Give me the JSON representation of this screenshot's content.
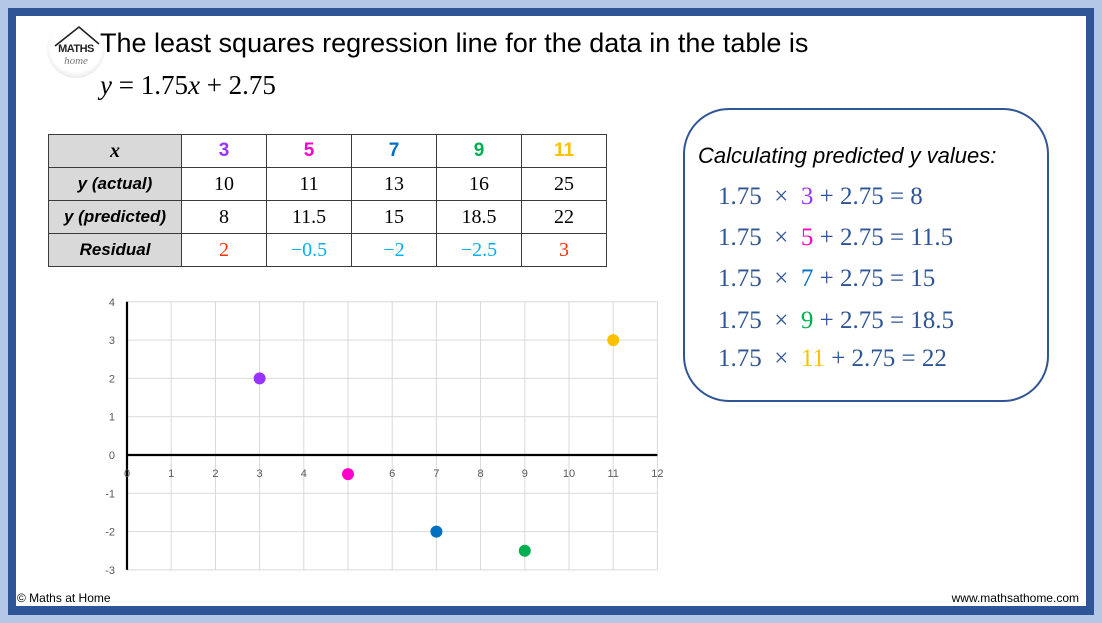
{
  "header": {
    "logo": {
      "top": "MATHS",
      "bottom": "home"
    },
    "title": "The least squares regression line for the data in the table is",
    "equation": {
      "y": "y",
      "eq": " = 1.75",
      "x": "x",
      "rest": " + 2.75"
    }
  },
  "table": {
    "row_labels": [
      "x",
      "y (actual)",
      "y (predicted)",
      "Residual"
    ],
    "x": [
      "3",
      "5",
      "7",
      "9",
      "11"
    ],
    "y_actual": [
      "10",
      "11",
      "13",
      "16",
      "25"
    ],
    "y_predicted": [
      "8",
      "11.5",
      "15",
      "18.5",
      "22"
    ],
    "residual": [
      "2",
      "−0.5",
      "−2",
      "−2.5",
      "3"
    ]
  },
  "colors": {
    "x_values": [
      "#9933ff",
      "#ff00cc",
      "#0070c0",
      "#00b050",
      "#ffc000"
    ],
    "residual_positive": "#ff3300",
    "residual_negative": "#00b0f0",
    "frame": "#2f5597",
    "outer": "#b4c7e7",
    "calc_text": "#2f5597"
  },
  "calc": {
    "title": "Calculating predicted y values:",
    "lines": [
      {
        "pre": "1.75  ×  ",
        "x": "3",
        "post": " + 2.75 = 8"
      },
      {
        "pre": "1.75  ×  ",
        "x": "5",
        "post": " + 2.75 = 11.5"
      },
      {
        "pre": "1.75  ×  ",
        "x": "7",
        "post": " + 2.75 = 15"
      },
      {
        "pre": "1.75  ×  ",
        "x": "9",
        "post": " + 2.75 = 18.5"
      },
      {
        "pre": "1.75  ×  ",
        "x": "11",
        "post": " + 2.75 = 22"
      }
    ]
  },
  "chart_data": {
    "type": "scatter",
    "title": "",
    "xlabel": "",
    "ylabel": "",
    "xlim": [
      0,
      12
    ],
    "ylim": [
      -3,
      4
    ],
    "x_ticks": [
      "0",
      "1",
      "2",
      "3",
      "4",
      "5",
      "6",
      "7",
      "8",
      "9",
      "10",
      "11",
      "12"
    ],
    "y_ticks": [
      "4",
      "3",
      "2",
      "1",
      "0",
      "-1",
      "-2",
      "-3"
    ],
    "grid": true,
    "series": [
      {
        "name": "Residuals",
        "x": [
          3,
          5,
          7,
          9,
          11
        ],
        "y": [
          2,
          -0.5,
          -2,
          -2.5,
          3
        ],
        "colors": [
          "#9933ff",
          "#ff00cc",
          "#0070c0",
          "#00b050",
          "#ffc000"
        ]
      }
    ]
  },
  "footer": {
    "copyright": "© Maths at Home",
    "url": "www.mathsathome.com"
  }
}
